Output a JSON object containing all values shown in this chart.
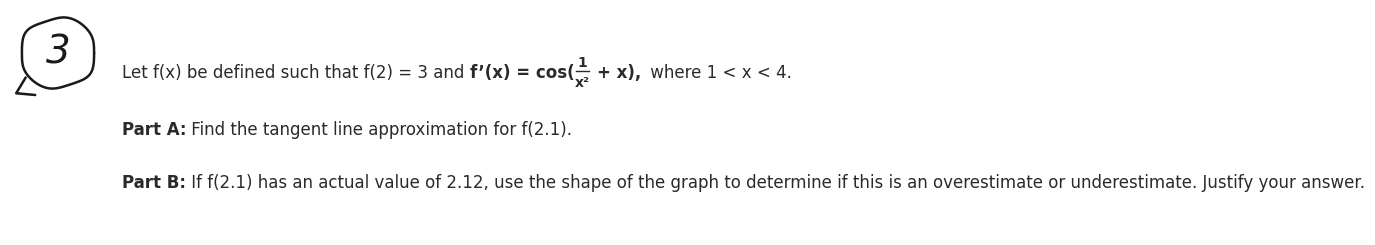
{
  "background_color": "#ffffff",
  "circle_number": "3",
  "text_color": "#2a2a2a",
  "font_size": 12.0,
  "line1_normal1": "Let f(x) be defined such that f(2) = 3 and ",
  "line1_bold": "f’(x) = ",
  "line1_cos_bold": "cos(",
  "line1_frac_num": "1",
  "line1_frac_den": "x²",
  "line1_end_bold": "+ x),",
  "line1_end_normal": " where 1 < x < 4.",
  "part_a_bold": "Part A:",
  "part_a_normal": " Find the tangent line approximation for f(2.1).",
  "part_b_bold": "Part B:",
  "part_b_normal": " If f(2.1) has an actual value of 2.12, use the shape of the graph to determine if this is an overestimate or underestimate. Justify your answer."
}
